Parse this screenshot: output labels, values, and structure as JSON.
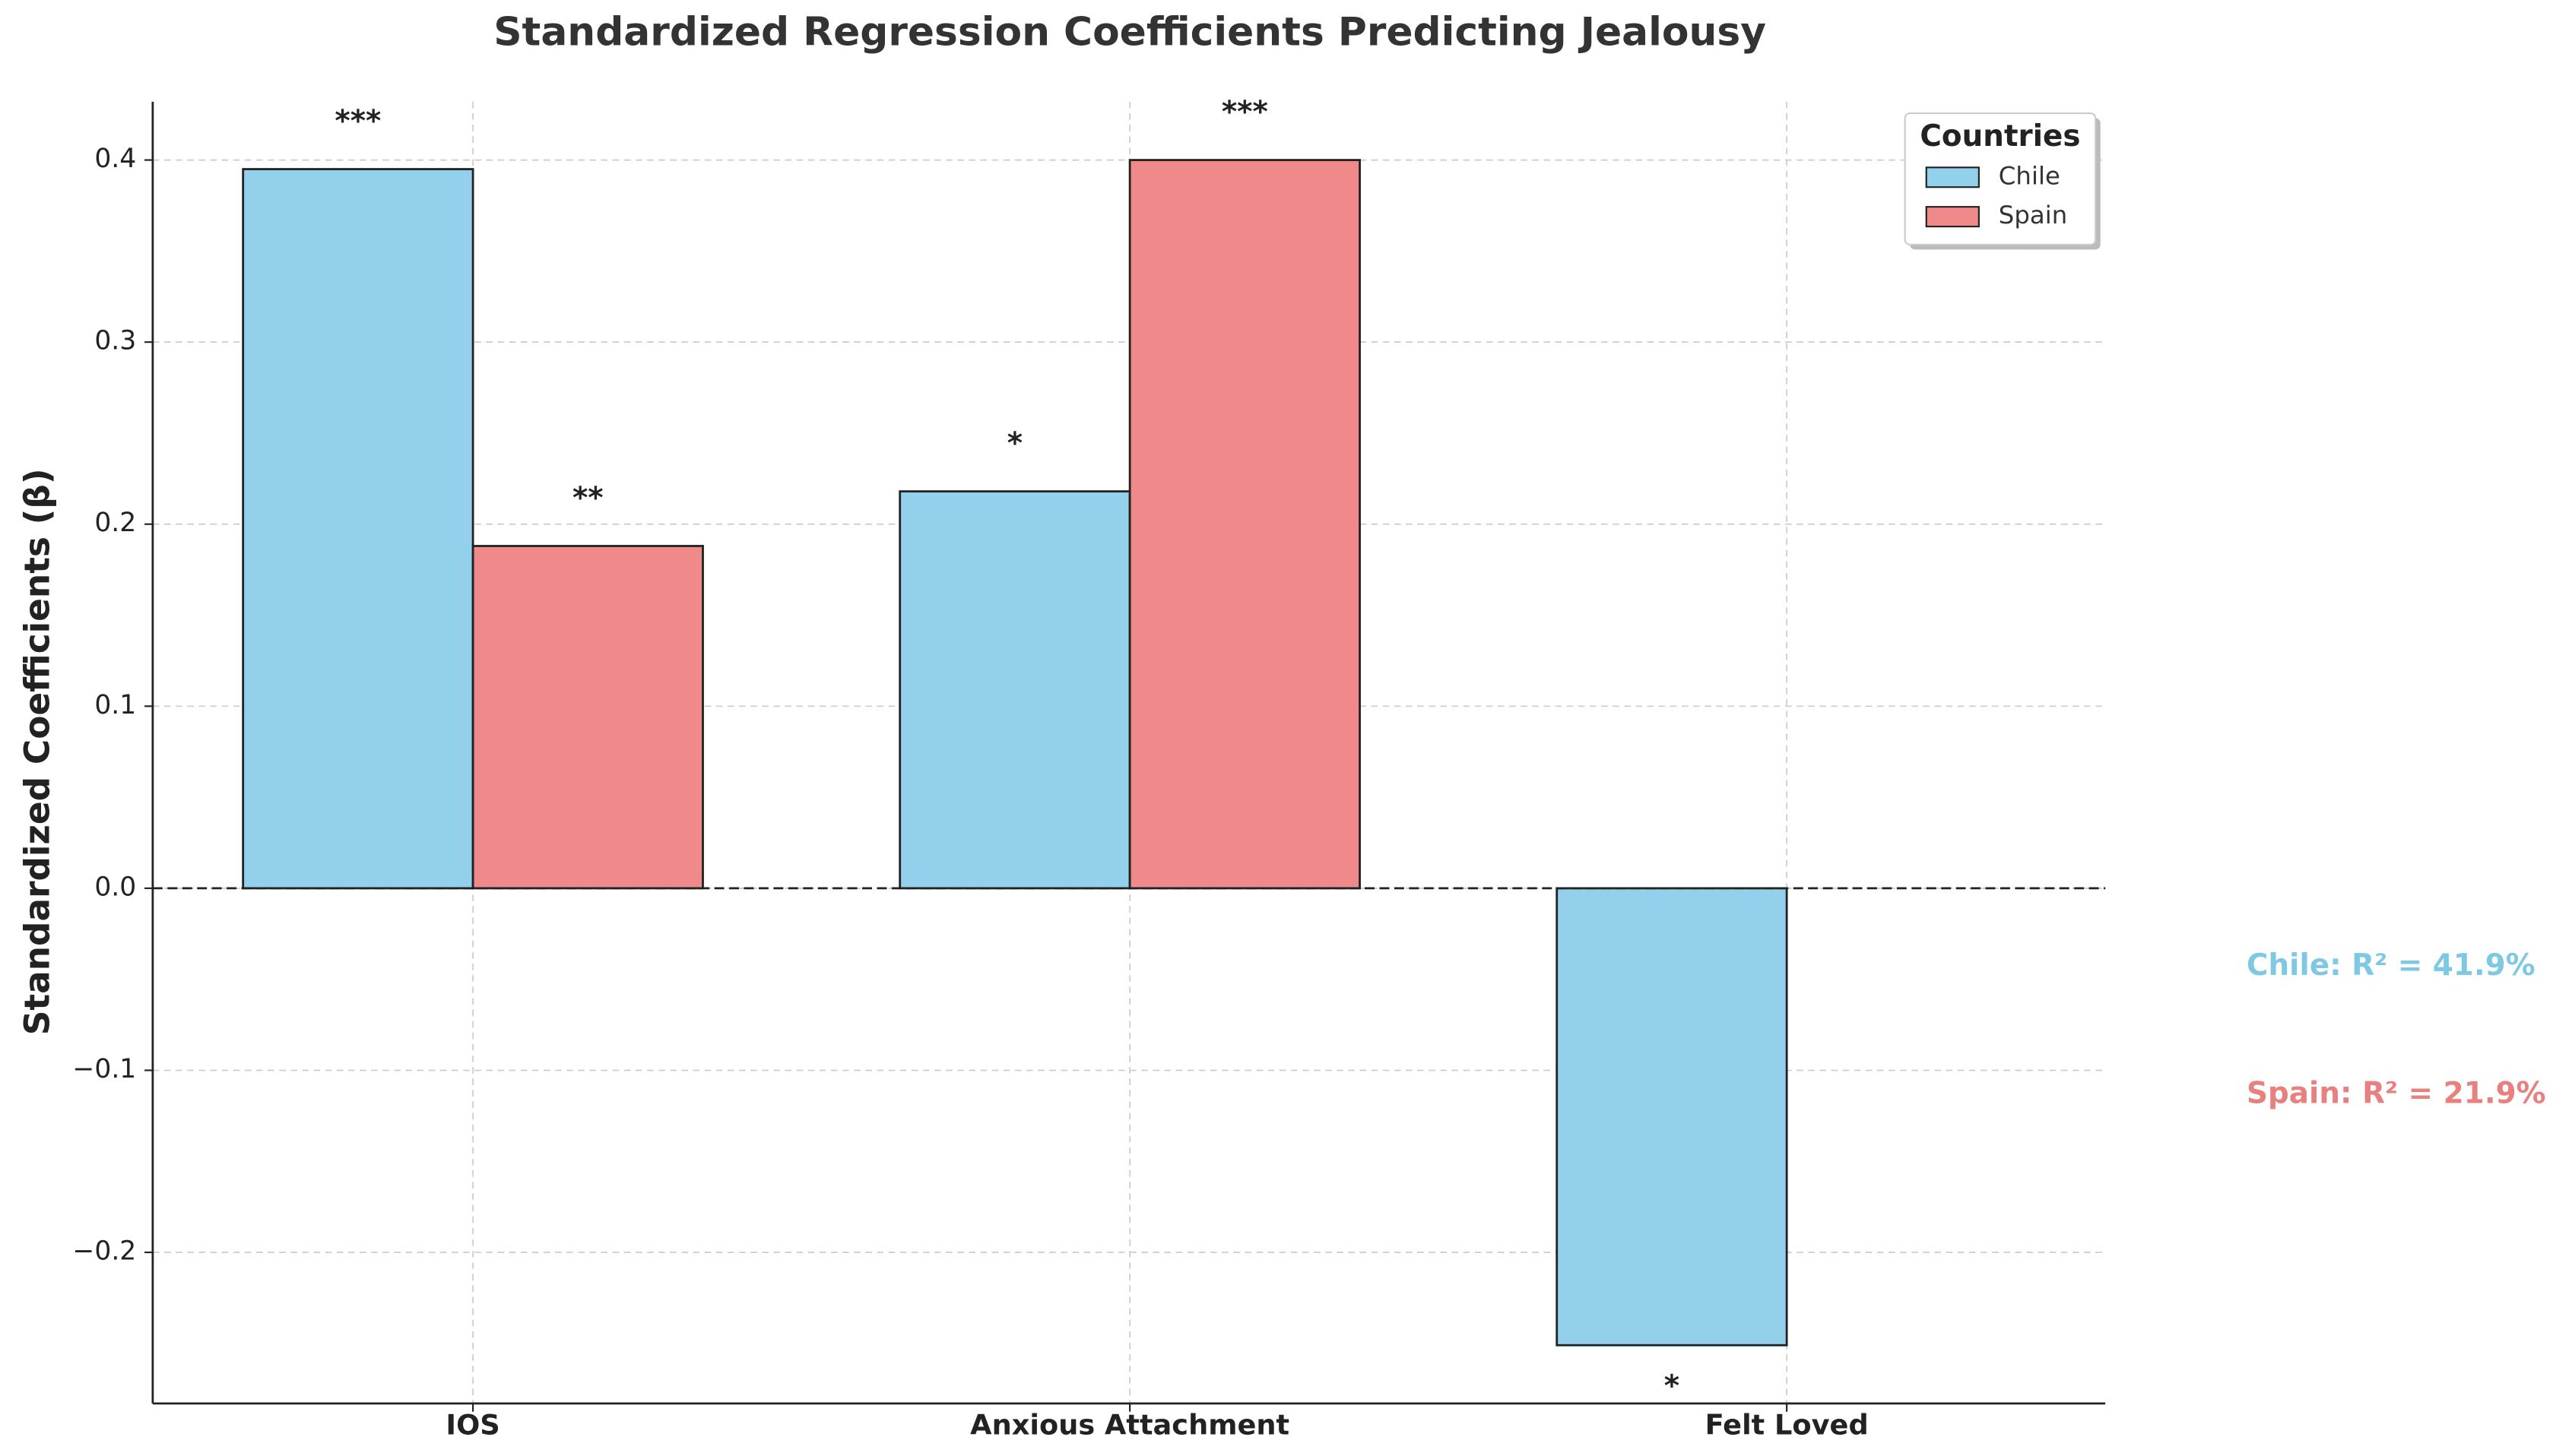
{
  "chart_data": {
    "type": "bar",
    "title": "Standardized Regression Coefficients Predicting Jealousy",
    "y_label": "Standardized Coefficients (β)",
    "categories": [
      "IOS",
      "Anxious Attachment",
      "Felt Loved"
    ],
    "series": [
      {
        "name": "Chile",
        "color": "#92d0ec",
        "values": [
          0.395,
          0.218,
          -0.251
        ],
        "significance": [
          "***",
          "*",
          "*"
        ]
      },
      {
        "name": "Spain",
        "color": "#f08a8a",
        "values": [
          0.188,
          0.4,
          0.0
        ],
        "significance": [
          "**",
          "***",
          null
        ]
      }
    ],
    "ylim": [
      -0.283,
      0.432
    ],
    "yticks": [
      {
        "value": -0.2,
        "label": "−0.2"
      },
      {
        "value": -0.1,
        "label": "−0.1"
      },
      {
        "value": 0,
        "label": "0.0"
      },
      0.1,
      0.2,
      0.3,
      0.4
    ],
    "grid": true,
    "legend": {
      "title": "Countries",
      "position": "upper right"
    },
    "annotations": [
      {
        "text": "Chile: R² = 41.9%",
        "color": "#7ec8e3"
      },
      {
        "text": "Spain: R² = 21.9%",
        "color": "#e88080"
      }
    ]
  }
}
